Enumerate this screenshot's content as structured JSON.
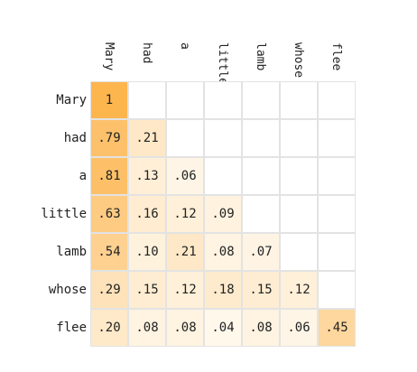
{
  "chart_data": {
    "type": "heatmap",
    "labels": [
      "Mary",
      "had",
      "a",
      "little",
      "lamb",
      "whose",
      "flee"
    ],
    "matrix": [
      [
        "1",
        "",
        "",
        "",
        "",
        "",
        ""
      ],
      [
        ".79",
        ".21",
        "",
        "",
        "",
        "",
        ""
      ],
      [
        ".81",
        ".13",
        ".06",
        "",
        "",
        "",
        ""
      ],
      [
        ".63",
        ".16",
        ".12",
        ".09",
        "",
        "",
        ""
      ],
      [
        ".54",
        ".10",
        ".21",
        ".08",
        ".07",
        "",
        ""
      ],
      [
        ".29",
        ".15",
        ".12",
        ".18",
        ".15",
        ".12",
        ""
      ],
      [
        ".20",
        ".08",
        ".08",
        ".04",
        ".08",
        ".06",
        ".45"
      ]
    ],
    "color_scale": {
      "low": "#fffdf8",
      "high": "#fdb54e",
      "empty": "#ffffff",
      "grid": "#e3e3e3"
    }
  }
}
